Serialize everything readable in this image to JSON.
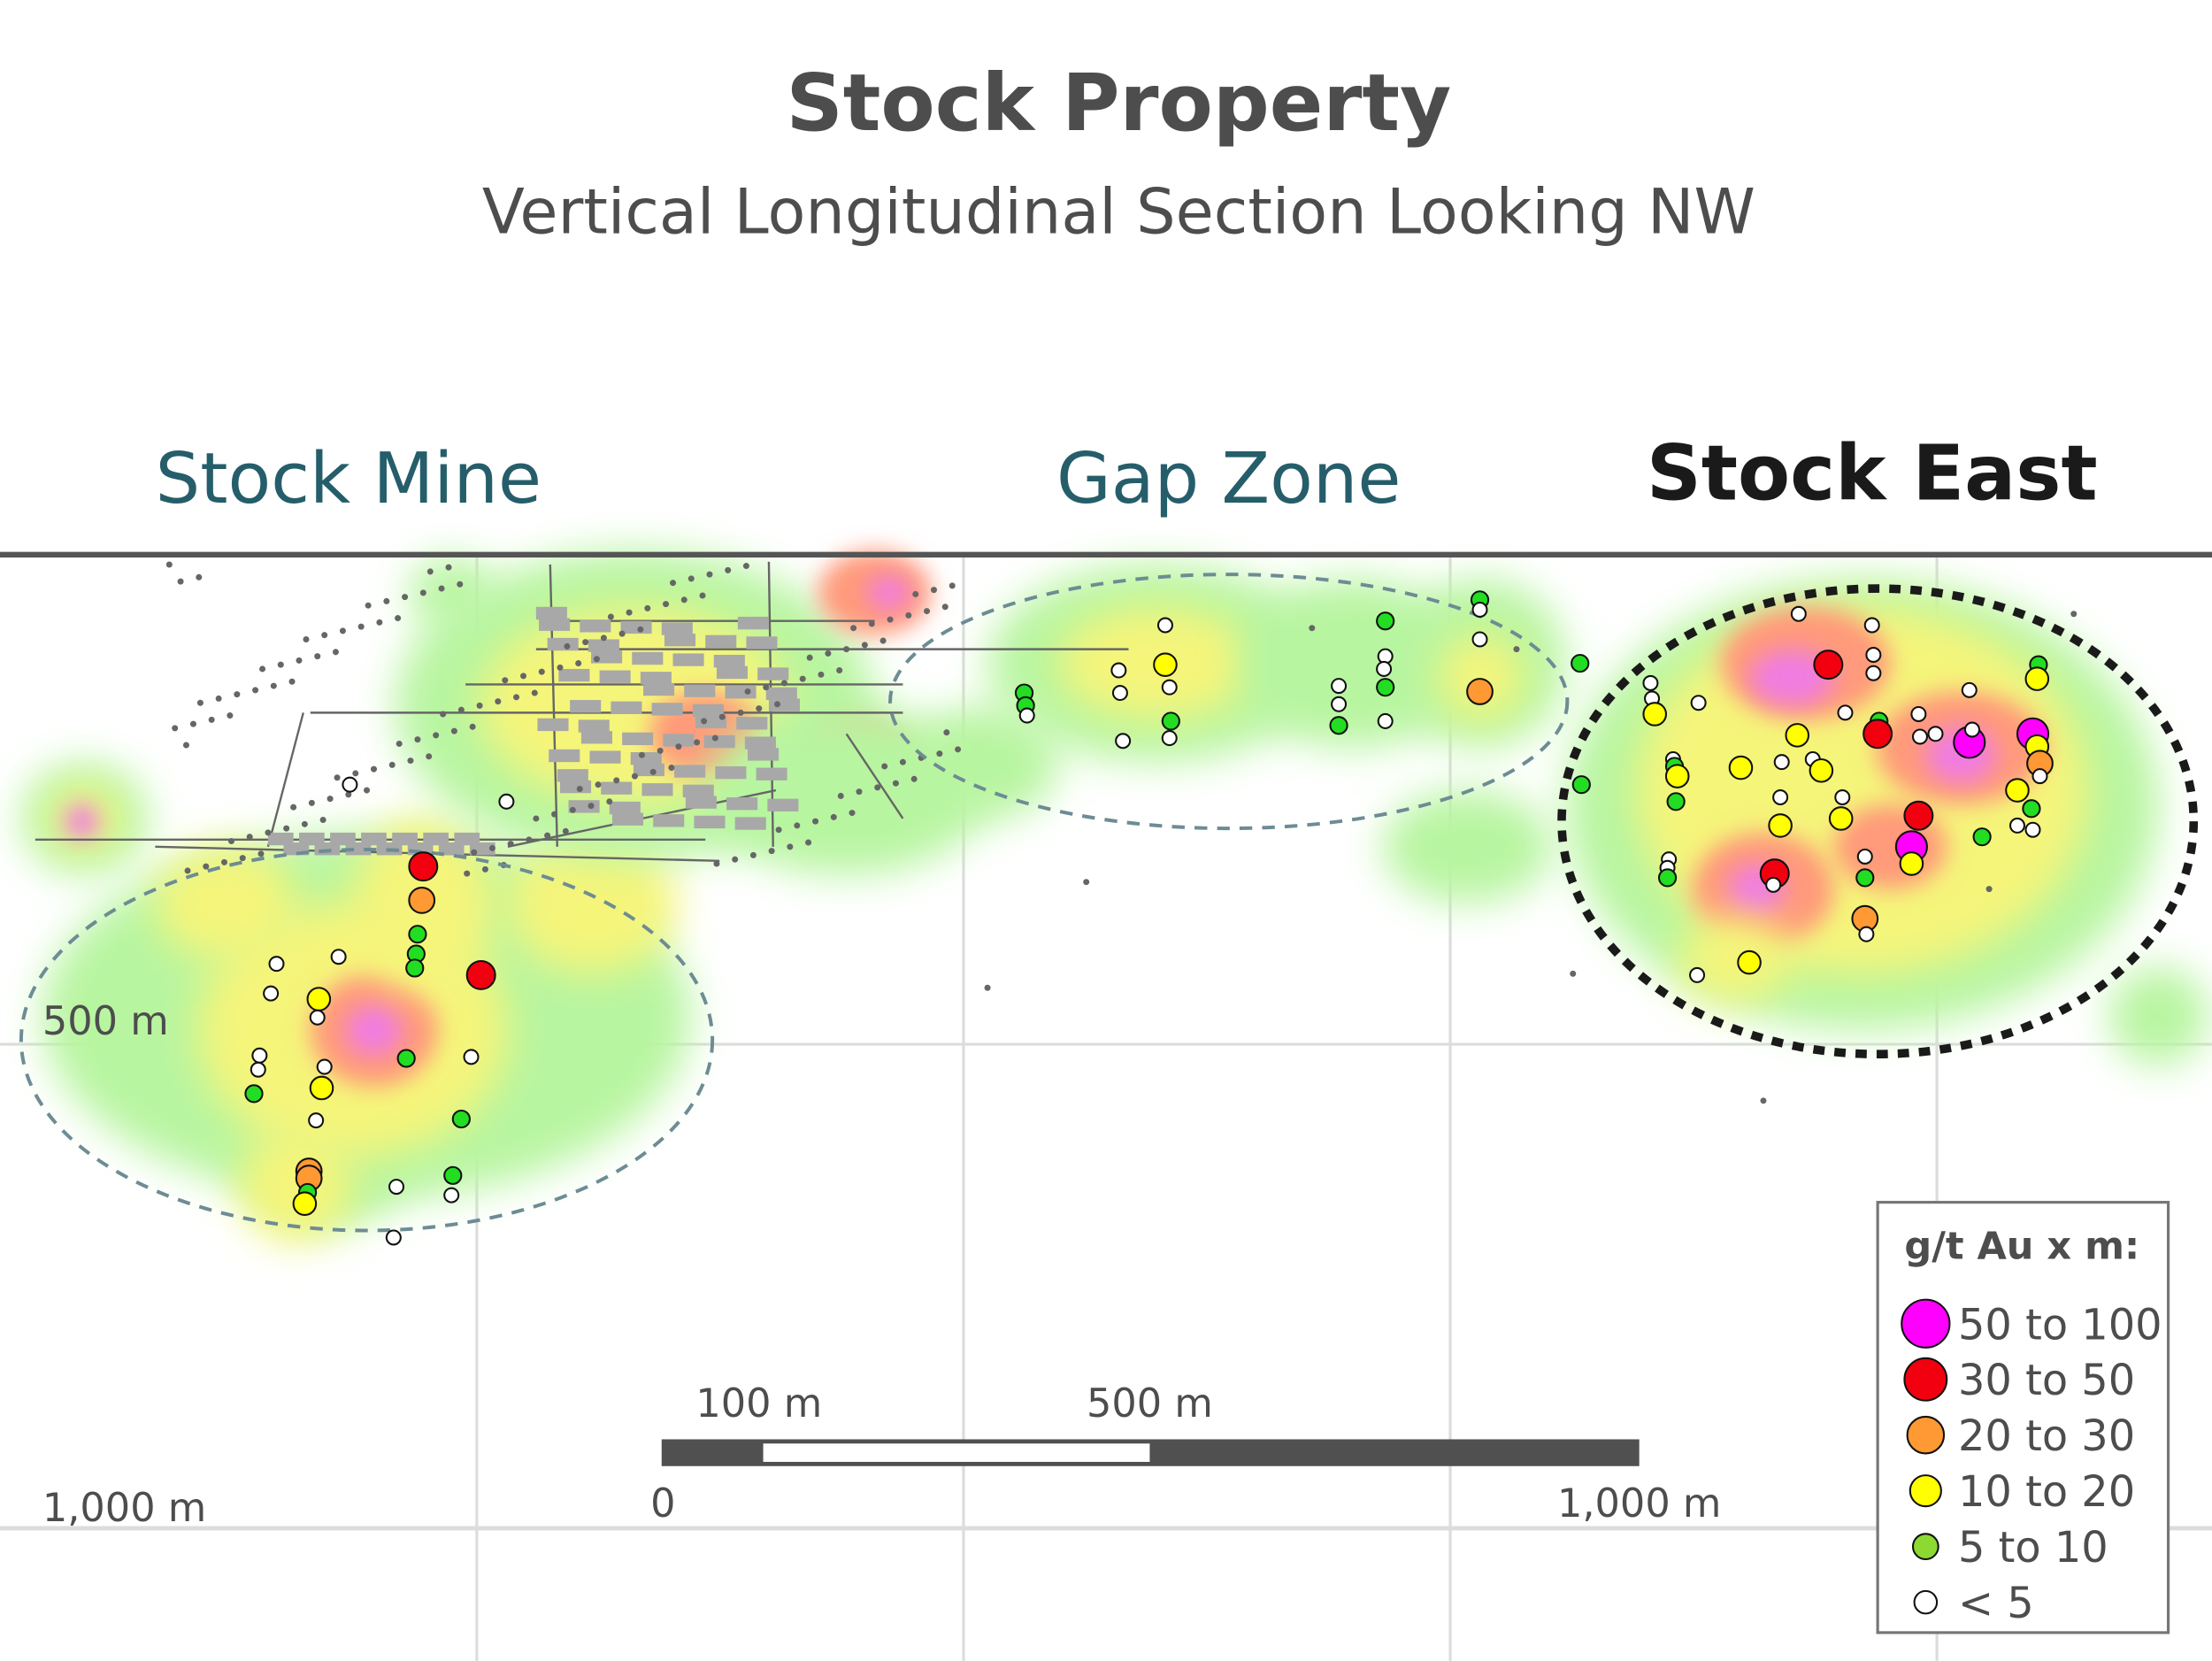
{
  "title": "Stock Property",
  "subtitle": "Vertical Longitudinal Section Looking NW",
  "zones": {
    "stock_mine": "Stock Mine",
    "gap_zone": "Gap Zone",
    "stock_east": "Stock East"
  },
  "grid_labels": {
    "depth_500": "500 m",
    "depth_1000": "1,000 m"
  },
  "scale_bar": {
    "label_100": "100 m",
    "label_500": "500 m",
    "label_0": "0",
    "label_1000": "1,000 m"
  },
  "legend": {
    "title": "g/t Au  x m:",
    "items": [
      {
        "label": "50 to 100",
        "color": "#ff00ff"
      },
      {
        "label": "30 to 50",
        "color": "#f2000f"
      },
      {
        "label": "20 to 30",
        "color": "#ff9933"
      },
      {
        "label": "10 to 20",
        "color": "#ffff00"
      },
      {
        "label": "5 to 10",
        "color": "#8cd932"
      },
      {
        "label": "< 5",
        "color": "#ffffff"
      }
    ]
  }
}
